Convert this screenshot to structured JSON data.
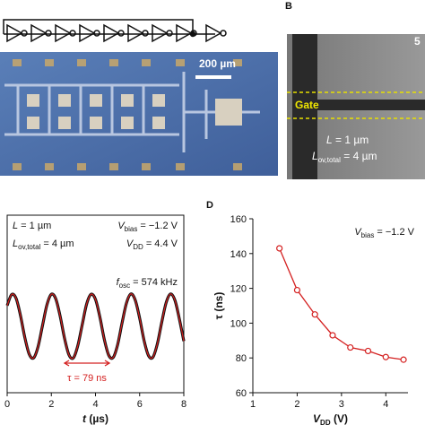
{
  "panels": {
    "b": "B",
    "d": "D"
  },
  "micrograph": {
    "scale": "200 µm"
  },
  "sem": {
    "gate": "Gate",
    "length": {
      "main": "L",
      "rest": " = 1 µm"
    },
    "overlap": {
      "main": "L",
      "sub": "ov,total",
      "rest": " = 4 µm"
    },
    "scale": "5"
  },
  "chart_data": [
    {
      "type": "line",
      "x_label": {
        "main": "t",
        "rest": " (µs)"
      },
      "annotations": {
        "length": {
          "main": "L",
          "rest": " = 1 µm"
        },
        "overlap": {
          "main": "L",
          "sub": "ov,total",
          "rest": " = 4 µm"
        },
        "bias": {
          "main": "V",
          "sub": "bias",
          "rest": " = −1.2 V"
        },
        "supply": {
          "main": "V",
          "sub": "DD",
          "rest": " = 4.4 V"
        },
        "freq": {
          "main": "f",
          "sub": "osc",
          "rest": " = 574 kHz"
        },
        "period": "τ = 79 ns"
      },
      "x": [
        0,
        0.2,
        0.4,
        0.6,
        0.8,
        1,
        1.2,
        1.4,
        1.6,
        1.8,
        2,
        2.2,
        2.4,
        2.6,
        2.8,
        3,
        3.2,
        3.4,
        3.6,
        3.8,
        4,
        4.2,
        4.4,
        4.6,
        4.8,
        5,
        5.2,
        5.4,
        5.6,
        5.8,
        6,
        6.2,
        6.4,
        6.6,
        6.8,
        7,
        7.2,
        7.4,
        7.6,
        7.8,
        8
      ],
      "series": [
        {
          "color": "#111111",
          "values": [
            0.64,
            0.98,
            0.87,
            0.34,
            -0.35,
            -0.87,
            -0.98,
            -0.63,
            0.02,
            0.66,
            0.99,
            0.85,
            0.31,
            -0.38,
            -0.89,
            -0.98,
            -0.6,
            0.05,
            0.69,
            0.99,
            0.83,
            0.28,
            -0.41,
            -0.9,
            -0.97,
            -0.58,
            0.09,
            0.71,
            1,
            0.81,
            0.25,
            -0.44,
            -0.91,
            -0.96,
            -0.55,
            0.12,
            0.73,
            1,
            0.8,
            0.22,
            -0.46
          ]
        }
      ],
      "fit_color": "#d42020",
      "xlim": [
        0,
        8
      ],
      "xticks": [
        0,
        2,
        4,
        6,
        8
      ],
      "ylim": [
        -2.06,
        3.44
      ]
    },
    {
      "type": "line",
      "x_label": {
        "main": "V",
        "sub": "DD",
        "rest": " (V)"
      },
      "y_label": "τ (ns)",
      "annotation": {
        "main": "V",
        "sub": "bias",
        "rest": " = −1.2 V"
      },
      "x": [
        1.6,
        2.0,
        2.4,
        2.8,
        3.2,
        3.6,
        4.0,
        4.4
      ],
      "series": [
        {
          "color": "#d42020",
          "values": [
            143,
            119,
            105,
            93,
            86,
            84,
            80.5,
            79
          ]
        }
      ],
      "xlim": [
        1,
        4.5
      ],
      "xticks": [
        1,
        2,
        3,
        4
      ],
      "ylim": [
        60,
        160
      ],
      "yticks": [
        60,
        80,
        100,
        120,
        140,
        160
      ]
    }
  ]
}
